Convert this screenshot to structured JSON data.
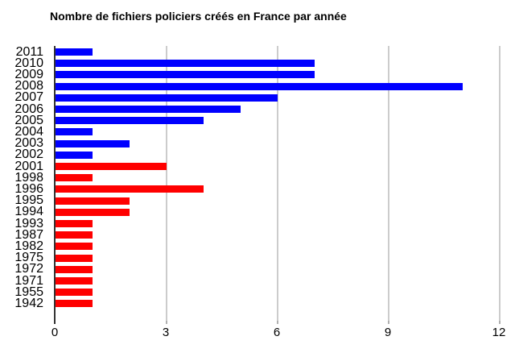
{
  "title": "Nombre de fichiers policiers créés en France par année",
  "palette": {
    "recent_bar": "#0000ff",
    "old_bar": "#ff0000",
    "gridline": "#cccccc",
    "axis": "#333333",
    "text": "#000000"
  },
  "chart_data": {
    "type": "bar",
    "orientation": "horizontal",
    "title": "Nombre de fichiers policiers créés en France par année",
    "categories": [
      "2011",
      "2010",
      "2009",
      "2008",
      "2007",
      "2006",
      "2005",
      "2004",
      "2003",
      "2002",
      "2001",
      "1998",
      "1996",
      "1995",
      "1994",
      "1993",
      "1987",
      "1982",
      "1975",
      "1972",
      "1971",
      "1955",
      "1942"
    ],
    "values": [
      1,
      7,
      7,
      11,
      6,
      5,
      4,
      1,
      2,
      1,
      3,
      1,
      4,
      2,
      2,
      1,
      1,
      1,
      1,
      1,
      1,
      1,
      1
    ],
    "bar_colors": [
      "#0000ff",
      "#0000ff",
      "#0000ff",
      "#0000ff",
      "#0000ff",
      "#0000ff",
      "#0000ff",
      "#0000ff",
      "#0000ff",
      "#0000ff",
      "#ff0000",
      "#ff0000",
      "#ff0000",
      "#ff0000",
      "#ff0000",
      "#ff0000",
      "#ff0000",
      "#ff0000",
      "#ff0000",
      "#ff0000",
      "#ff0000",
      "#ff0000",
      "#ff0000"
    ],
    "xlabel": "",
    "ylabel": "",
    "xlim": [
      0,
      12
    ],
    "x_ticks": [
      0,
      3,
      6,
      9,
      12
    ],
    "grid": true,
    "legend": "none"
  }
}
